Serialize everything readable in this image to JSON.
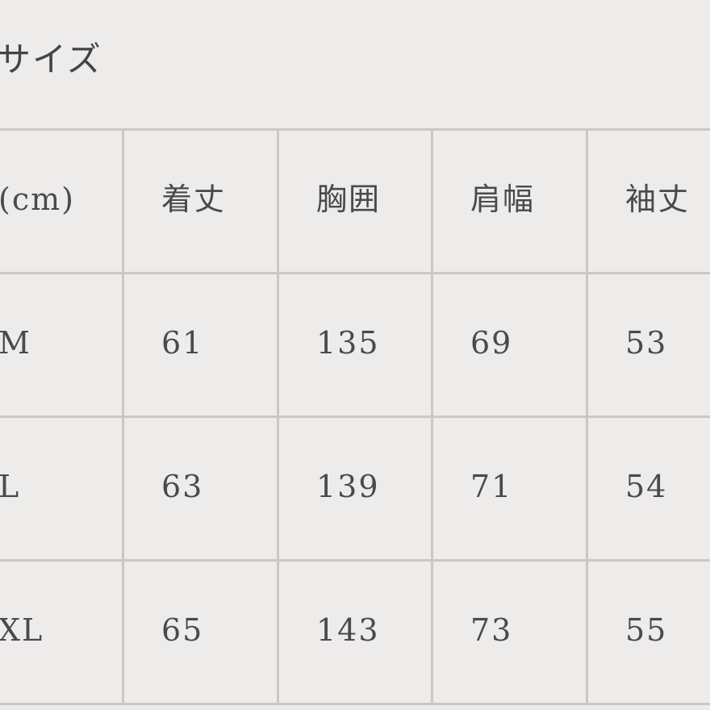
{
  "header": {
    "title": "サイズ"
  },
  "table": {
    "columns": [
      "(cm)",
      "着丈",
      "胸囲",
      "肩幅",
      "袖丈"
    ],
    "rows": [
      [
        "M",
        61,
        135,
        69,
        53
      ],
      [
        "L",
        63,
        139,
        71,
        54
      ],
      [
        "XL",
        65,
        143,
        73,
        55
      ]
    ]
  }
}
